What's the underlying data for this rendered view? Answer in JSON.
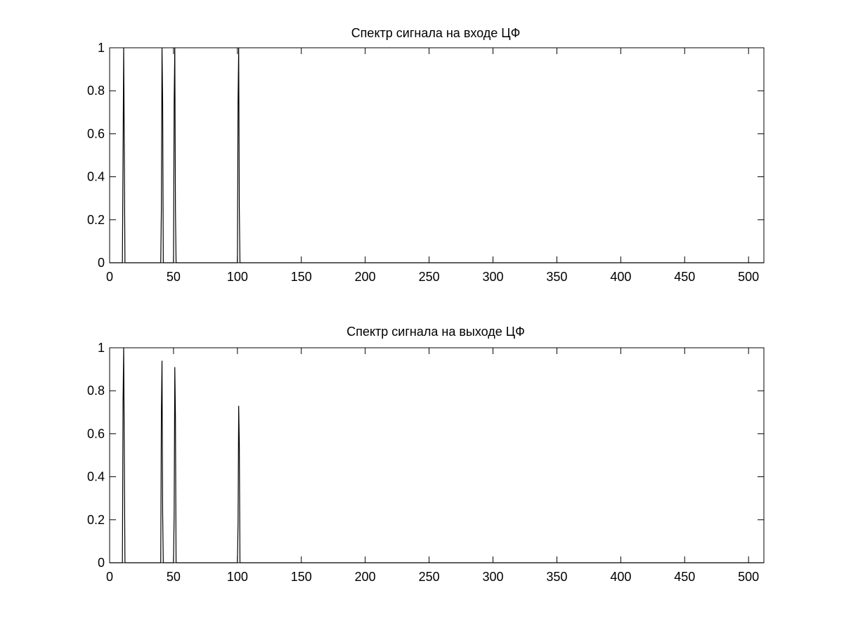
{
  "chart_data": [
    {
      "type": "line",
      "title": "Спектр сигнала на входе ЦФ",
      "xlabel": "",
      "ylabel": "",
      "xlim": [
        0,
        512
      ],
      "ylim": [
        0,
        1
      ],
      "grid": false,
      "xticks": [
        0,
        50,
        100,
        150,
        200,
        250,
        300,
        350,
        400,
        450,
        500
      ],
      "yticks": [
        0,
        0.2,
        0.4,
        0.6,
        0.8,
        1
      ],
      "ytick_labels": [
        "0",
        "0.2",
        "0.4",
        "0.6",
        "0.8",
        "1"
      ],
      "x": [
        0,
        10,
        10.5,
        11,
        11.5,
        12,
        40,
        40.5,
        41,
        41.5,
        42,
        50,
        50.5,
        51,
        51.5,
        52,
        100,
        100.5,
        101,
        101.5,
        102,
        512
      ],
      "y": [
        0,
        0,
        0.5,
        1,
        0.5,
        0,
        0,
        0.25,
        1,
        0.75,
        0,
        0,
        0.75,
        1,
        0.25,
        0,
        0,
        0.75,
        1,
        0.25,
        0,
        0
      ],
      "color": "#000000"
    },
    {
      "type": "line",
      "title": "Спектр сигнала на выходе ЦФ",
      "xlabel": "",
      "ylabel": "",
      "xlim": [
        0,
        512
      ],
      "ylim": [
        0,
        1
      ],
      "grid": false,
      "xticks": [
        0,
        50,
        100,
        150,
        200,
        250,
        300,
        350,
        400,
        450,
        500
      ],
      "yticks": [
        0,
        0.2,
        0.4,
        0.6,
        0.8,
        1
      ],
      "ytick_labels": [
        "0",
        "0.2",
        "0.4",
        "0.6",
        "0.8",
        "1"
      ],
      "x": [
        0,
        10,
        10.5,
        11,
        11.5,
        12,
        40,
        40.5,
        41,
        41.5,
        42,
        50,
        50.5,
        51,
        51.5,
        52,
        100,
        100.5,
        101,
        101.5,
        102,
        512
      ],
      "y": [
        0,
        0,
        0.75,
        1,
        0.5,
        0,
        0,
        0.7,
        0.94,
        0.23,
        0,
        0,
        0.23,
        0.91,
        0.68,
        0,
        0,
        0.18,
        0.73,
        0.55,
        0,
        0
      ],
      "color": "#000000"
    }
  ]
}
